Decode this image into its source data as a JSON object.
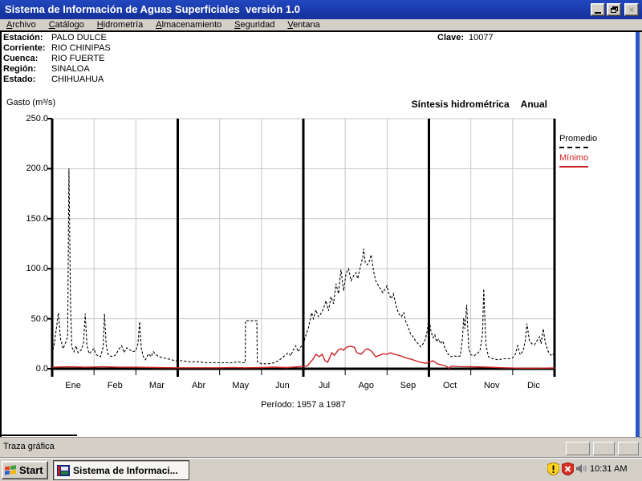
{
  "window": {
    "title": "Sistema de Información de Aguas Superficiales  versión 1.0",
    "caption_buttons": [
      "minimize-icon",
      "restore-icon",
      "close-icon"
    ]
  },
  "menu": {
    "items": [
      "Archivo",
      "Catálogo",
      "Hidrometría",
      "Almacenamiento",
      "Seguridad",
      "Ventana"
    ]
  },
  "station": {
    "rows": [
      {
        "label": "Estación:",
        "value": "PALO DULCE"
      },
      {
        "label": "Corriente:",
        "value": "RIO CHINIPAS"
      },
      {
        "label": "Cuenca:",
        "value": "RIO FUERTE"
      },
      {
        "label": "Región:",
        "value": "SINALOA"
      },
      {
        "label": "Estado:",
        "value": "CHIHUAHUA"
      }
    ],
    "clave_label": "Clave:",
    "clave_value": "10077"
  },
  "chart": {
    "ylabel": "Gasto (m³/s)",
    "subtitle": "Síntesis hidrométrica",
    "subtitle_mode": "Anual",
    "period": "Período: 1957 a 1987",
    "y_tick_labels": [
      "250.0",
      "200.0",
      "150.0",
      "100.0",
      "50.0",
      "0.0"
    ],
    "months": [
      "Ene",
      "Feb",
      "Mar",
      "Abr",
      "May",
      "Jun",
      "Jul",
      "Ago",
      "Sep",
      "Oct",
      "Nov",
      "Dic"
    ],
    "legend": [
      {
        "label": "Promedio",
        "color": "#000000",
        "style": "dashed"
      },
      {
        "label": "Mínimo",
        "color": "#CC2222",
        "style": "solid"
      }
    ]
  },
  "chart_data": {
    "type": "line",
    "title": "Síntesis hidrométrica Anual",
    "ylabel": "Gasto (m³/s)",
    "xlabel": "Período: 1957 a 1987",
    "ylim": [
      0,
      250
    ],
    "y_ticks": [
      0,
      50,
      100,
      150,
      200,
      250
    ],
    "x_categories": [
      "Ene",
      "Feb",
      "Mar",
      "Abr",
      "May",
      "Jun",
      "Jul",
      "Ago",
      "Sep",
      "Oct",
      "Nov",
      "Dic"
    ],
    "x_unit": "month_fraction_0_to_12",
    "grid": true,
    "quarter_dividers_at_months": [
      3,
      6,
      9,
      12
    ],
    "legend_position": "top-right",
    "series": [
      {
        "name": "Promedio",
        "color": "#000000",
        "style": "dashed",
        "points": [
          [
            0,
            15
          ],
          [
            0.05,
            25
          ],
          [
            0.1,
            40
          ],
          [
            0.15,
            56
          ],
          [
            0.2,
            30
          ],
          [
            0.26,
            20
          ],
          [
            0.32,
            26
          ],
          [
            0.37,
            32
          ],
          [
            0.4,
            200
          ],
          [
            0.44,
            60
          ],
          [
            0.47,
            22
          ],
          [
            0.52,
            17
          ],
          [
            0.57,
            23
          ],
          [
            0.62,
            16
          ],
          [
            0.7,
            19
          ],
          [
            0.75,
            26
          ],
          [
            0.79,
            55
          ],
          [
            0.83,
            24
          ],
          [
            0.88,
            15
          ],
          [
            0.95,
            18
          ],
          [
            1,
            20
          ],
          [
            1.05,
            14
          ],
          [
            1.1,
            13
          ],
          [
            1.15,
            12
          ],
          [
            1.18,
            16
          ],
          [
            1.22,
            22
          ],
          [
            1.25,
            55
          ],
          [
            1.29,
            24
          ],
          [
            1.33,
            15
          ],
          [
            1.38,
            13
          ],
          [
            1.45,
            12
          ],
          [
            1.52,
            14
          ],
          [
            1.6,
            20
          ],
          [
            1.66,
            23
          ],
          [
            1.72,
            16
          ],
          [
            1.78,
            21
          ],
          [
            1.85,
            19
          ],
          [
            1.92,
            17
          ],
          [
            2,
            18
          ],
          [
            2.05,
            25
          ],
          [
            2.09,
            47
          ],
          [
            2.13,
            20
          ],
          [
            2.18,
            12
          ],
          [
            2.23,
            9
          ],
          [
            2.3,
            15
          ],
          [
            2.36,
            12
          ],
          [
            2.42,
            17
          ],
          [
            2.48,
            14
          ],
          [
            2.55,
            12
          ],
          [
            2.65,
            11
          ],
          [
            2.75,
            10
          ],
          [
            2.85,
            9
          ],
          [
            2.95,
            8
          ],
          [
            3.1,
            8
          ],
          [
            3.3,
            7
          ],
          [
            3.5,
            7
          ],
          [
            3.7,
            6
          ],
          [
            3.9,
            6
          ],
          [
            4.1,
            6
          ],
          [
            4.3,
            6
          ],
          [
            4.45,
            7
          ],
          [
            4.55,
            6
          ],
          [
            4.61,
            6
          ],
          [
            4.62,
            48
          ],
          [
            4.89,
            48
          ],
          [
            4.9,
            7
          ],
          [
            5,
            5
          ],
          [
            5.15,
            5
          ],
          [
            5.3,
            6
          ],
          [
            5.4,
            8
          ],
          [
            5.5,
            11
          ],
          [
            5.58,
            14
          ],
          [
            5.64,
            16
          ],
          [
            5.7,
            13
          ],
          [
            5.76,
            19
          ],
          [
            5.82,
            23
          ],
          [
            5.88,
            17
          ],
          [
            5.94,
            22
          ],
          [
            6,
            25
          ],
          [
            6.05,
            32
          ],
          [
            6.12,
            41
          ],
          [
            6.2,
            56
          ],
          [
            6.24,
            50
          ],
          [
            6.3,
            59
          ],
          [
            6.36,
            52
          ],
          [
            6.42,
            55
          ],
          [
            6.48,
            60
          ],
          [
            6.54,
            68
          ],
          [
            6.6,
            58
          ],
          [
            6.66,
            72
          ],
          [
            6.72,
            65
          ],
          [
            6.78,
            85
          ],
          [
            6.84,
            75
          ],
          [
            6.9,
            99
          ],
          [
            6.96,
            78
          ],
          [
            7.02,
            95
          ],
          [
            7.08,
            100
          ],
          [
            7.14,
            88
          ],
          [
            7.2,
            93
          ],
          [
            7.26,
            96
          ],
          [
            7.3,
            90
          ],
          [
            7.34,
            98
          ],
          [
            7.38,
            105
          ],
          [
            7.42,
            112
          ],
          [
            7.44,
            120
          ],
          [
            7.48,
            106
          ],
          [
            7.53,
            104
          ],
          [
            7.58,
            108
          ],
          [
            7.62,
            114
          ],
          [
            7.68,
            97
          ],
          [
            7.73,
            88
          ],
          [
            7.78,
            84
          ],
          [
            7.84,
            80
          ],
          [
            7.9,
            76
          ],
          [
            7.96,
            80
          ],
          [
            8,
            83
          ],
          [
            8.05,
            74
          ],
          [
            8.1,
            70
          ],
          [
            8.15,
            75
          ],
          [
            8.22,
            62
          ],
          [
            8.28,
            55
          ],
          [
            8.34,
            52
          ],
          [
            8.4,
            56
          ],
          [
            8.44,
            48
          ],
          [
            8.5,
            42
          ],
          [
            8.56,
            35
          ],
          [
            8.62,
            32
          ],
          [
            8.68,
            28
          ],
          [
            8.74,
            25
          ],
          [
            8.8,
            22
          ],
          [
            8.86,
            25
          ],
          [
            8.92,
            30
          ],
          [
            8.96,
            38
          ],
          [
            9,
            52
          ],
          [
            9.05,
            37
          ],
          [
            9.1,
            31
          ],
          [
            9.14,
            34
          ],
          [
            9.18,
            27
          ],
          [
            9.23,
            30
          ],
          [
            9.28,
            25
          ],
          [
            9.33,
            28
          ],
          [
            9.38,
            21
          ],
          [
            9.45,
            15
          ],
          [
            9.52,
            12
          ],
          [
            9.6,
            13
          ],
          [
            9.68,
            12
          ],
          [
            9.75,
            13
          ],
          [
            9.8,
            30
          ],
          [
            9.83,
            51
          ],
          [
            9.86,
            40
          ],
          [
            9.9,
            64
          ],
          [
            9.95,
            20
          ],
          [
            10,
            14
          ],
          [
            10.08,
            13
          ],
          [
            10.15,
            15
          ],
          [
            10.22,
            18
          ],
          [
            10.28,
            35
          ],
          [
            10.31,
            80
          ],
          [
            10.36,
            25
          ],
          [
            10.42,
            12
          ],
          [
            10.52,
            10
          ],
          [
            10.65,
            9
          ],
          [
            10.78,
            10
          ],
          [
            10.9,
            10
          ],
          [
            11,
            11
          ],
          [
            11.06,
            14
          ],
          [
            11.12,
            23
          ],
          [
            11.18,
            14
          ],
          [
            11.25,
            18
          ],
          [
            11.3,
            28
          ],
          [
            11.34,
            45
          ],
          [
            11.4,
            28
          ],
          [
            11.46,
            25
          ],
          [
            11.52,
            24
          ],
          [
            11.58,
            28
          ],
          [
            11.64,
            32
          ],
          [
            11.68,
            25
          ],
          [
            11.73,
            40
          ],
          [
            11.78,
            26
          ],
          [
            11.84,
            18
          ],
          [
            11.9,
            14
          ],
          [
            11.95,
            13
          ],
          [
            12,
            17
          ]
        ]
      },
      {
        "name": "Mínimo",
        "color": "#CC2222",
        "style": "solid",
        "points": [
          [
            0,
            1.5
          ],
          [
            0.4,
            2
          ],
          [
            0.8,
            1.5
          ],
          [
            1.2,
            2
          ],
          [
            1.6,
            1.5
          ],
          [
            2,
            1.5
          ],
          [
            2.5,
            1.2
          ],
          [
            3,
            1
          ],
          [
            3.5,
            1
          ],
          [
            4,
            1
          ],
          [
            4.3,
            1.3
          ],
          [
            4.6,
            1
          ],
          [
            5,
            1.2
          ],
          [
            5.3,
            1.6
          ],
          [
            5.6,
            1.2
          ],
          [
            5.9,
            2
          ],
          [
            6,
            2.2
          ],
          [
            6.1,
            3
          ],
          [
            6.15,
            5.5
          ],
          [
            6.23,
            9.5
          ],
          [
            6.3,
            14.5
          ],
          [
            6.38,
            12
          ],
          [
            6.45,
            14.5
          ],
          [
            6.52,
            8
          ],
          [
            6.58,
            6.5
          ],
          [
            6.68,
            16
          ],
          [
            6.74,
            13.5
          ],
          [
            6.84,
            19
          ],
          [
            6.9,
            20
          ],
          [
            6.96,
            18.5
          ],
          [
            7.03,
            21.5
          ],
          [
            7.12,
            22.5
          ],
          [
            7.22,
            21.5
          ],
          [
            7.28,
            16
          ],
          [
            7.38,
            14.5
          ],
          [
            7.48,
            19
          ],
          [
            7.54,
            20
          ],
          [
            7.63,
            17.5
          ],
          [
            7.73,
            12
          ],
          [
            7.82,
            13.5
          ],
          [
            7.9,
            15
          ],
          [
            8,
            14.5
          ],
          [
            8.08,
            16
          ],
          [
            8.18,
            14.5
          ],
          [
            8.28,
            13.5
          ],
          [
            8.38,
            12
          ],
          [
            8.48,
            10.5
          ],
          [
            8.58,
            9.5
          ],
          [
            8.68,
            8
          ],
          [
            8.8,
            6.5
          ],
          [
            8.92,
            5.5
          ],
          [
            9,
            6.6
          ],
          [
            9.1,
            8
          ],
          [
            9.2,
            5
          ],
          [
            9.4,
            2.8
          ],
          [
            9.48,
            0.6
          ],
          [
            9.53,
            2.6
          ],
          [
            9.7,
            2.2
          ],
          [
            10,
            2
          ],
          [
            10.4,
            1.6
          ],
          [
            10.8,
            1
          ],
          [
            11.2,
            0.6
          ],
          [
            11.6,
            0.6
          ],
          [
            12,
            0.8
          ]
        ]
      }
    ]
  },
  "status": {
    "text": "Traza gráfica"
  },
  "taskbar": {
    "start_label": "Start",
    "app_button_label": "Sistema de Informaci...",
    "clock": "10:31 AM",
    "tray_icons": [
      "security-warning-shield-icon",
      "security-error-shield-icon",
      "volume-icon"
    ]
  },
  "colors": {
    "titlebar_blue": "#16339F",
    "window_gray": "#D4D0C8",
    "promedio_line": "#000000",
    "minimo_line": "#CC2222",
    "grid_gray": "#C6C6C6"
  }
}
